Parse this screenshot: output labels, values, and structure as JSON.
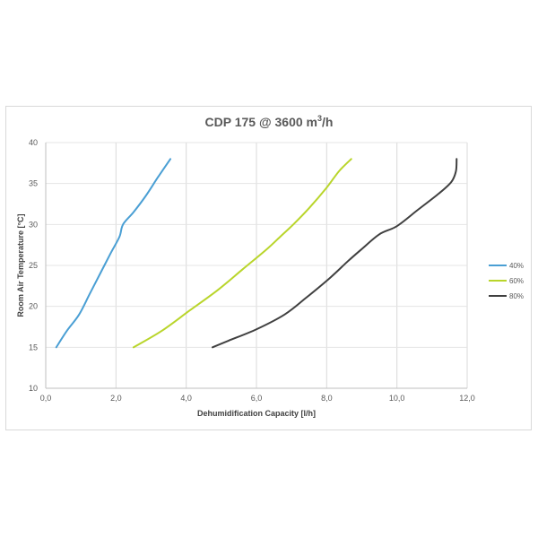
{
  "chart_data": {
    "type": "line",
    "title": "CDP 175 @ 3600 m³/h",
    "title_main": "CDP 175 @ 3600 m",
    "title_sup": "3",
    "title_tail": "/h",
    "xlabel": "Dehumidification Capacity [l/h]",
    "ylabel": "Room Air  Temperature [°C]",
    "xlim": [
      0,
      12
    ],
    "ylim": [
      10,
      40
    ],
    "x_ticks": [
      0,
      2,
      4,
      6,
      8,
      10,
      12
    ],
    "x_tick_labels": [
      "0,0",
      "2,0",
      "4,0",
      "6,0",
      "8,0",
      "10,0",
      "12,0"
    ],
    "y_ticks": [
      10,
      15,
      20,
      25,
      30,
      35,
      40
    ],
    "y_tick_labels": [
      "10",
      "15",
      "20",
      "25",
      "30",
      "35",
      "40"
    ],
    "grid": "vertical",
    "legend_position": "right",
    "series": [
      {
        "name": "40%",
        "color": "#4a9fd4",
        "points": [
          [
            0.3,
            15
          ],
          [
            0.6,
            17
          ],
          [
            0.95,
            19
          ],
          [
            1.25,
            21.5
          ],
          [
            1.55,
            24
          ],
          [
            1.85,
            26.5
          ],
          [
            2.1,
            28.5
          ],
          [
            2.2,
            30
          ],
          [
            2.5,
            31.5
          ],
          [
            2.85,
            33.5
          ],
          [
            3.2,
            35.8
          ],
          [
            3.55,
            38
          ]
        ]
      },
      {
        "name": "60%",
        "color": "#b9d52b",
        "points": [
          [
            2.5,
            15
          ],
          [
            3.3,
            17
          ],
          [
            4.1,
            19.5
          ],
          [
            4.9,
            22
          ],
          [
            5.6,
            24.5
          ],
          [
            6.3,
            27
          ],
          [
            6.7,
            28.6
          ],
          [
            7.05,
            30
          ],
          [
            7.5,
            32
          ],
          [
            8.0,
            34.5
          ],
          [
            8.35,
            36.5
          ],
          [
            8.7,
            38
          ]
        ]
      },
      {
        "name": "80%",
        "color": "#404040",
        "points": [
          [
            4.75,
            15
          ],
          [
            5.2,
            15.8
          ],
          [
            6.0,
            17.2
          ],
          [
            6.8,
            19
          ],
          [
            7.4,
            21
          ],
          [
            8.1,
            23.5
          ],
          [
            8.6,
            25.5
          ],
          [
            9.0,
            27
          ],
          [
            9.5,
            28.8
          ],
          [
            10.0,
            29.8
          ],
          [
            10.6,
            31.8
          ],
          [
            11.2,
            33.8
          ],
          [
            11.55,
            35.2
          ],
          [
            11.68,
            36.5
          ],
          [
            11.7,
            38
          ]
        ]
      }
    ]
  }
}
